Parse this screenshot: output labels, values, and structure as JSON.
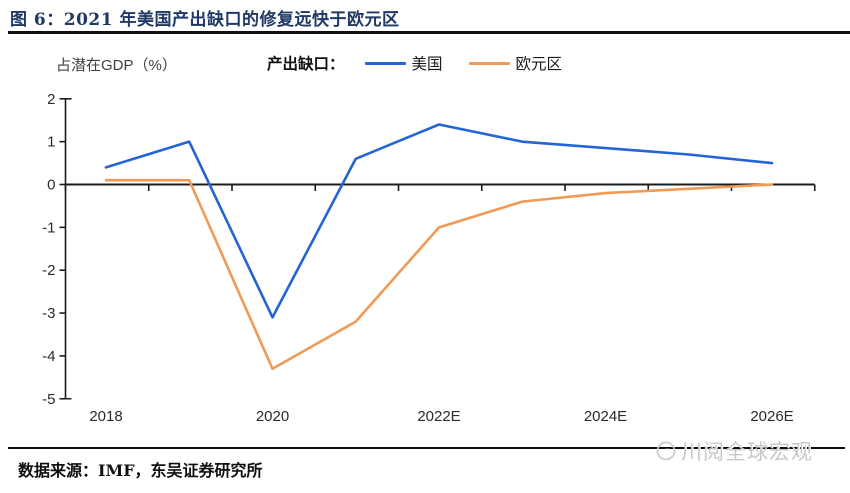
{
  "figure": {
    "title": "图 6：2021 年美国产出缺口的修复远快于欧元区",
    "source": "数据来源：IMF，东吴证券研究所",
    "watermark": "川阅全球宏观"
  },
  "chart_data": {
    "type": "line",
    "title": "2021 年美国产出缺口的修复远快于欧元区",
    "ylabel": "占潜在GDP（%）",
    "legend_prefix": "产出缺口：",
    "legend_position": "top",
    "grid": false,
    "categories": [
      "2018",
      "2019",
      "2020",
      "2021",
      "2022E",
      "2023E",
      "2024E",
      "2025E",
      "2026E"
    ],
    "x_labels": [
      {
        "index": 0,
        "label": "2018"
      },
      {
        "index": 2,
        "label": "2020"
      },
      {
        "index": 4,
        "label": "2022E"
      },
      {
        "index": 6,
        "label": "2024E"
      },
      {
        "index": 8,
        "label": "2026E"
      }
    ],
    "ylim": [
      -5,
      2
    ],
    "y_ticks": [
      2,
      1,
      0,
      -1,
      -2,
      -3,
      -4,
      -5
    ],
    "series": [
      {
        "name": "美国",
        "color": "#2365d4",
        "values": [
          0.4,
          1.0,
          -3.1,
          0.6,
          1.4,
          1.0,
          0.85,
          0.7,
          0.5
        ]
      },
      {
        "name": "欧元区",
        "color": "#f09a56",
        "values": [
          0.1,
          0.1,
          -4.3,
          -3.2,
          -1.0,
          -0.4,
          -0.2,
          -0.1,
          0.0
        ]
      }
    ],
    "colors": {
      "axis": "#1c1c1c",
      "tick_label": "#2b2b2b",
      "title_navy": "#1f3864"
    }
  }
}
